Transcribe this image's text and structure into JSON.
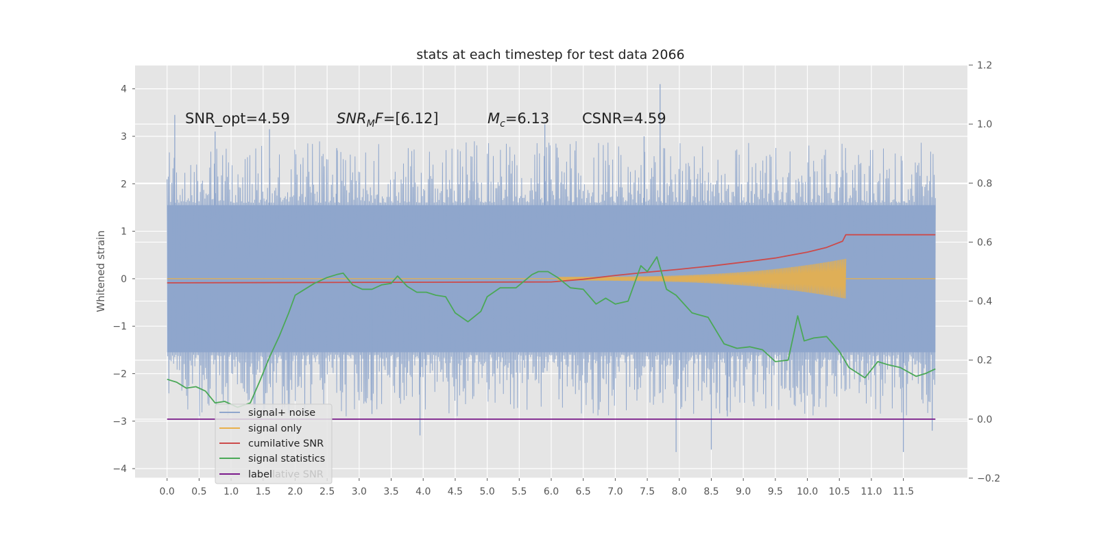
{
  "chart_data": {
    "type": "line",
    "title": "stats at each timestep for test data 2066",
    "ylabel": "Whitened strain",
    "y2label": "",
    "xlim": [
      -0.5,
      12.5
    ],
    "ylim": [
      -4.2,
      4.5
    ],
    "y2lim": [
      -0.2,
      1.2
    ],
    "x_ticks": [
      "0.0",
      "0.5",
      "1.0",
      "1.5",
      "2.0",
      "2.5",
      "3.0",
      "3.5",
      "4.0",
      "4.5",
      "5.0",
      "5.5",
      "6.0",
      "6.5",
      "7.0",
      "7.5",
      "8.0",
      "8.5",
      "9.0",
      "9.5",
      "10.0",
      "10.5",
      "11.0",
      "11.5"
    ],
    "y_ticks": [
      "4",
      "3",
      "2",
      "1",
      "0",
      "−1",
      "−2",
      "−3",
      "−4"
    ],
    "y2_ticks": [
      "1.2",
      "1.0",
      "0.8",
      "0.6",
      "0.4",
      "0.2",
      "0.0",
      "−0.2"
    ],
    "grid": true,
    "legend_placement": "lower-left",
    "colors": {
      "background": "#e5e5e5",
      "grid": "#ffffff",
      "noise": "#8fa6cc",
      "signal": "#e8b04a",
      "csnr": "#cc4a4a",
      "stats": "#4aa856",
      "label": "#7a1a8a"
    },
    "annotations": {
      "snr_opt": "SNR_opt=4.59",
      "snr_mf_main": "SNR",
      "snr_mf_sub": "M",
      "snr_mf_tail": "F",
      "snr_mf_value": "=[6.12]",
      "mc_main": "M",
      "mc_sub": "c",
      "mc_value": "=6.13",
      "csnr": "CSNR=4.59"
    },
    "legend": {
      "noise": "signal+ noise",
      "signal": "signal only",
      "csnr": "cumilative SNR",
      "stats": "signal statistics",
      "label": "label",
      "ghost": "lative SNR"
    },
    "series": [
      {
        "name": "signal+ noise",
        "axis": "left",
        "x_range": [
          0.0,
          12.0
        ],
        "band": [
          -1.55,
          1.55
        ],
        "peaks": [
          [
            0.12,
            3.45
          ],
          [
            0.75,
            3.1
          ],
          [
            1.6,
            3.15
          ],
          [
            2.65,
            2.75
          ],
          [
            5.9,
            3.25
          ],
          [
            7.45,
            3.0
          ],
          [
            7.7,
            4.1
          ],
          [
            3.95,
            -3.3
          ],
          [
            7.95,
            -3.65
          ],
          [
            8.5,
            -3.6
          ],
          [
            11.5,
            -3.65
          ],
          [
            11.95,
            -3.2
          ],
          [
            3.2,
            -2.85
          ],
          [
            8.75,
            -2.9
          ]
        ]
      },
      {
        "name": "signal only",
        "axis": "left",
        "chirp_start": 6.1,
        "merger": 10.6,
        "end": 12.0,
        "amplitude_max": 0.42
      },
      {
        "name": "cumilative SNR",
        "axis": "right",
        "x": [
          0.0,
          6.0,
          6.5,
          7.0,
          7.5,
          8.0,
          8.5,
          9.0,
          9.5,
          10.0,
          10.3,
          10.55,
          10.6,
          12.0
        ],
        "values": [
          0.462,
          0.465,
          0.474,
          0.487,
          0.498,
          0.508,
          0.519,
          0.532,
          0.546,
          0.566,
          0.582,
          0.603,
          0.625,
          0.625
        ]
      },
      {
        "name": "signal statistics",
        "axis": "right",
        "x": [
          0.0,
          0.15,
          0.3,
          0.45,
          0.6,
          0.75,
          0.9,
          1.1,
          1.3,
          1.45,
          1.6,
          1.75,
          1.9,
          2.0,
          2.15,
          2.3,
          2.5,
          2.65,
          2.75,
          2.9,
          3.05,
          3.2,
          3.35,
          3.5,
          3.6,
          3.75,
          3.9,
          4.05,
          4.2,
          4.35,
          4.5,
          4.7,
          4.9,
          5.0,
          5.2,
          5.45,
          5.7,
          5.8,
          5.95,
          6.1,
          6.3,
          6.5,
          6.7,
          6.85,
          7.0,
          7.2,
          7.4,
          7.5,
          7.65,
          7.8,
          7.95,
          8.2,
          8.45,
          8.7,
          8.9,
          9.1,
          9.3,
          9.5,
          9.7,
          9.85,
          9.95,
          10.1,
          10.3,
          10.5,
          10.65,
          10.9,
          11.1,
          11.25,
          11.45,
          11.7,
          11.85,
          12.0
        ],
        "values": [
          0.135,
          0.125,
          0.105,
          0.11,
          0.095,
          0.055,
          0.06,
          0.04,
          0.055,
          0.13,
          0.21,
          0.28,
          0.36,
          0.42,
          0.44,
          0.46,
          0.48,
          0.49,
          0.495,
          0.455,
          0.44,
          0.44,
          0.455,
          0.46,
          0.485,
          0.45,
          0.43,
          0.43,
          0.42,
          0.415,
          0.36,
          0.33,
          0.365,
          0.415,
          0.445,
          0.445,
          0.49,
          0.5,
          0.5,
          0.48,
          0.445,
          0.44,
          0.39,
          0.41,
          0.39,
          0.4,
          0.52,
          0.5,
          0.55,
          0.44,
          0.42,
          0.36,
          0.345,
          0.255,
          0.24,
          0.245,
          0.235,
          0.195,
          0.2,
          0.35,
          0.265,
          0.275,
          0.28,
          0.23,
          0.175,
          0.14,
          0.195,
          0.185,
          0.175,
          0.145,
          0.155,
          0.17
        ]
      },
      {
        "name": "label",
        "axis": "right",
        "x": [
          0.0,
          12.0
        ],
        "values": [
          0.0,
          0.0
        ]
      }
    ]
  }
}
